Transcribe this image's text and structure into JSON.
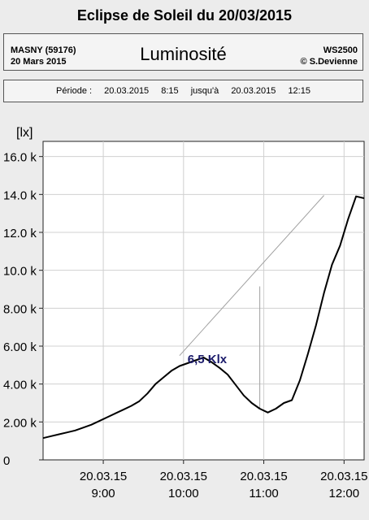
{
  "header": {
    "title": "Eclipse de Soleil du 20/03/2015",
    "station_name": "MASNY (59176)",
    "station_date": "20 Mars  2015",
    "measure": "Luminosité",
    "device": "WS2500",
    "author": "© S.Devienne"
  },
  "period": {
    "label": "Période :",
    "start_date": "20.03.2015",
    "start_time": "8:15",
    "until": "jusqu'à",
    "end_date": "20.03.2015",
    "end_time": "12:15"
  },
  "chart_data": {
    "type": "line",
    "title": "Eclipse de Soleil du 20/03/2015",
    "ylabel": "[lx]",
    "ylim": [
      0,
      16800
    ],
    "xlim": [
      8.25,
      12.25
    ],
    "y_ticks": [
      {
        "value": 0,
        "label": "0"
      },
      {
        "value": 2000,
        "label": "2.00 k"
      },
      {
        "value": 4000,
        "label": "4.00 k"
      },
      {
        "value": 6000,
        "label": "6.00 k"
      },
      {
        "value": 8000,
        "label": "8.00 k"
      },
      {
        "value": 10000,
        "label": "10.0 k"
      },
      {
        "value": 12000,
        "label": "12.0 k"
      },
      {
        "value": 14000,
        "label": "14.0 k"
      },
      {
        "value": 16000,
        "label": "16.0 k"
      }
    ],
    "x_ticks": [
      {
        "value": 9,
        "date": "20.03.15",
        "time": "9:00"
      },
      {
        "value": 10,
        "date": "20.03.15",
        "time": "10:00"
      },
      {
        "value": 11,
        "date": "20.03.15",
        "time": "11:00"
      },
      {
        "value": 12,
        "date": "20.03.15",
        "time": "12:00"
      }
    ],
    "grid": true,
    "series": [
      {
        "color": "#000000",
        "x": [
          8.25,
          8.35,
          8.45,
          8.55,
          8.65,
          8.75,
          8.85,
          8.95,
          9.05,
          9.15,
          9.25,
          9.35,
          9.45,
          9.55,
          9.65,
          9.75,
          9.85,
          9.95,
          10.05,
          10.15,
          10.25,
          10.35,
          10.45,
          10.55,
          10.65,
          10.75,
          10.85,
          10.95,
          11.05,
          11.15,
          11.25,
          11.35,
          11.45,
          11.55,
          11.65,
          11.75,
          11.85,
          11.95,
          12.05,
          12.15,
          12.25
        ],
        "y": [
          1150,
          1250,
          1350,
          1450,
          1550,
          1700,
          1850,
          2050,
          2250,
          2450,
          2650,
          2850,
          3100,
          3500,
          4000,
          4350,
          4700,
          4950,
          5100,
          5250,
          5400,
          5150,
          4850,
          4500,
          3950,
          3400,
          3000,
          2700,
          2500,
          2700,
          3000,
          3150,
          4200,
          5600,
          7100,
          8800,
          10300,
          11300,
          12700,
          13900,
          13800
        ]
      }
    ],
    "reference_line": {
      "x": [
        9.95,
        11.75
      ],
      "y": [
        5500,
        13950
      ],
      "color": "#a0a0a0"
    },
    "drop_marker": {
      "x": 10.95,
      "y_from": 2700,
      "y_to": 9150,
      "color": "#a0a0a0"
    },
    "annotation": {
      "text": "6,5 Klx",
      "x": 10.05,
      "y": 5100,
      "color": "#1b1b6b"
    }
  }
}
